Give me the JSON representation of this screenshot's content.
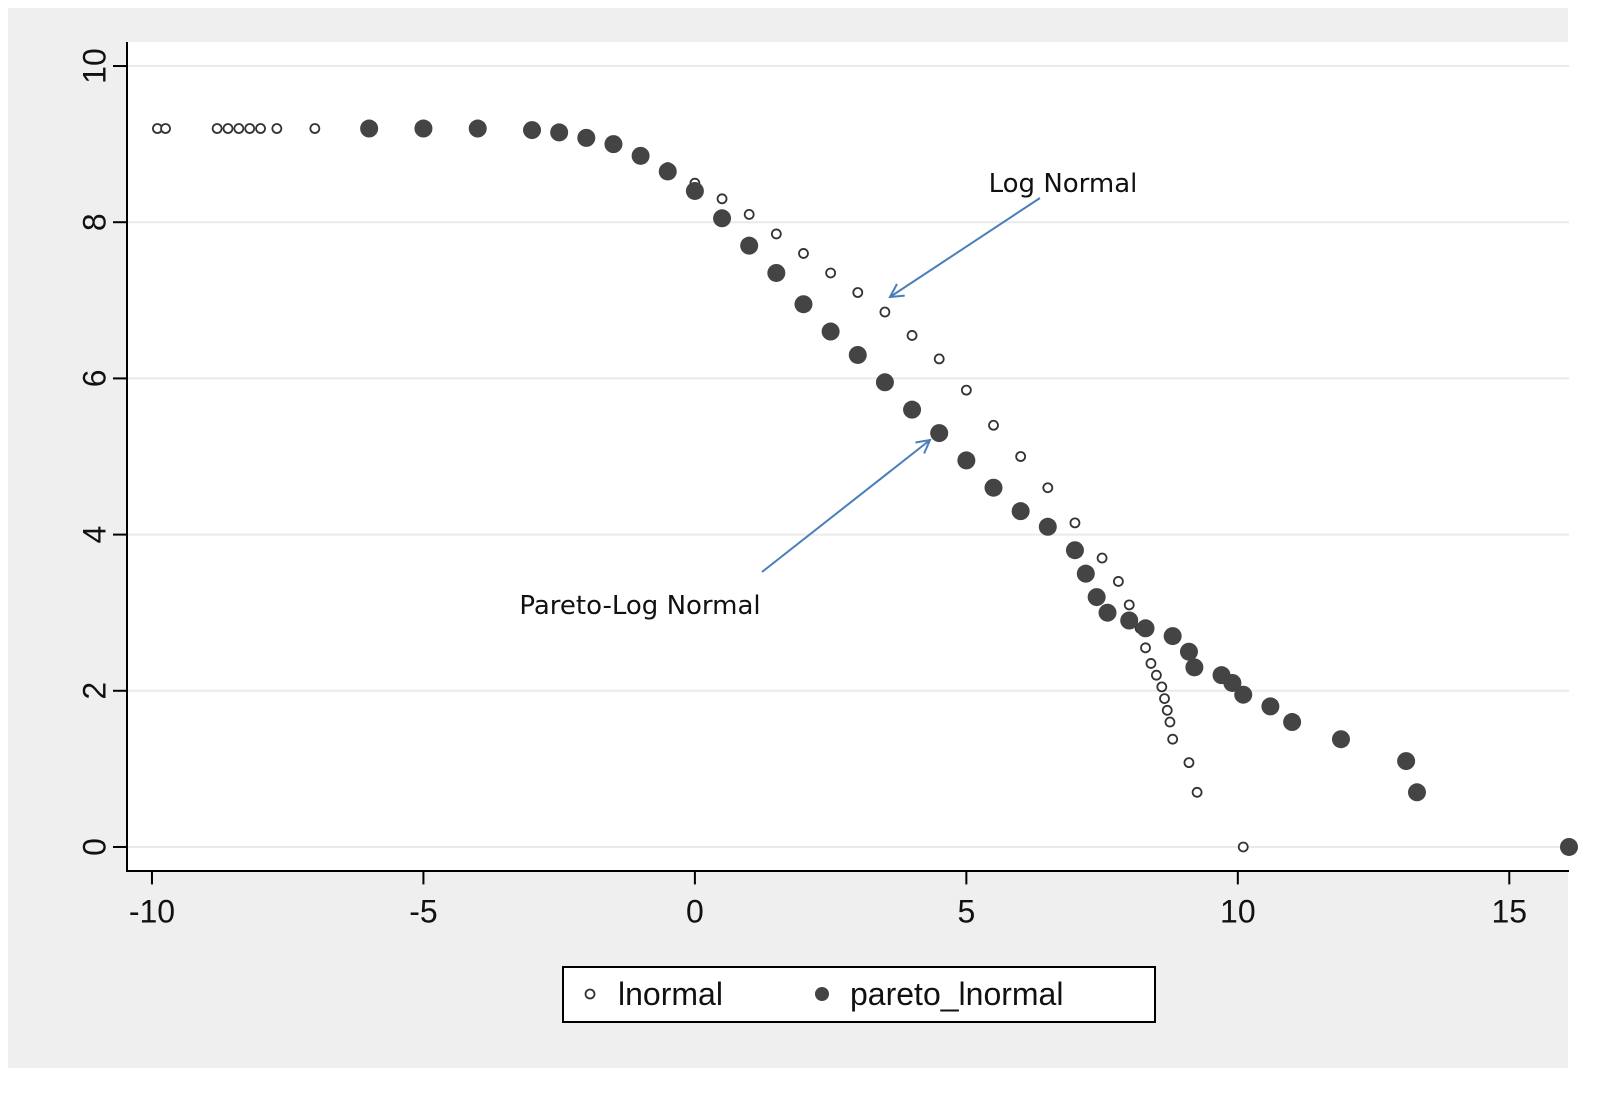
{
  "chart_data": {
    "type": "scatter",
    "annotations": [
      "Log Normal",
      "Pareto-Log Normal"
    ],
    "series": [
      {
        "name": "lnormal",
        "color": "#333333",
        "marker": "hollow",
        "x": [
          -9.9,
          -9.75,
          -8.8,
          -8.6,
          -8.4,
          -8.2,
          -8.0,
          -7.7,
          -7,
          -6,
          -5,
          -4,
          -3,
          -2,
          -1.5,
          -1,
          -0.5,
          0,
          0.5,
          1,
          1.5,
          2,
          2.5,
          3,
          3.5,
          4,
          4.5,
          5,
          5.5,
          6,
          6.5,
          7,
          7.5,
          7.8,
          8.0,
          8.2,
          8.3,
          8.4,
          8.5,
          8.6,
          8.65,
          8.7,
          8.75,
          8.8,
          9.1,
          9.25,
          10.1
        ],
        "values": [
          9.2,
          9.2,
          9.2,
          9.2,
          9.2,
          9.2,
          9.2,
          9.2,
          9.2,
          9.2,
          9.2,
          9.19,
          9.17,
          9.1,
          9.0,
          8.85,
          8.7,
          8.5,
          8.3,
          8.1,
          7.85,
          7.6,
          7.35,
          7.1,
          6.85,
          6.55,
          6.25,
          5.85,
          5.4,
          5.0,
          4.6,
          4.15,
          3.7,
          3.4,
          3.1,
          2.8,
          2.55,
          2.35,
          2.2,
          2.05,
          1.9,
          1.75,
          1.6,
          1.38,
          1.08,
          0.7,
          0
        ]
      },
      {
        "name": "pareto_lnormal",
        "color": "#444444",
        "marker": "filled",
        "x": [
          -6,
          -5,
          -4,
          -3,
          -2.5,
          -2,
          -1.5,
          -1,
          -0.5,
          0,
          0.5,
          1,
          1.5,
          2,
          2.5,
          3,
          3.5,
          4,
          4.5,
          5,
          5.5,
          6,
          6.5,
          7,
          7.2,
          7.4,
          7.6,
          8,
          8.3,
          8.8,
          9.1,
          9.2,
          9.7,
          9.9,
          10.1,
          10.6,
          11,
          11.9,
          13.1,
          13.3,
          16.1
        ],
        "values": [
          9.2,
          9.2,
          9.2,
          9.18,
          9.15,
          9.08,
          9.0,
          8.85,
          8.65,
          8.4,
          8.05,
          7.7,
          7.35,
          6.95,
          6.6,
          6.3,
          5.95,
          5.6,
          5.3,
          4.95,
          4.6,
          4.3,
          4.1,
          3.8,
          3.5,
          3.2,
          3.0,
          2.9,
          2.8,
          2.7,
          2.5,
          2.3,
          2.2,
          2.1,
          1.95,
          1.8,
          1.6,
          1.38,
          1.1,
          0.7,
          0
        ]
      }
    ],
    "xlim": [
      -10.46,
      16.1
    ],
    "xticks": [
      -10,
      -5,
      0,
      5,
      10,
      15
    ],
    "ylim": [
      -0.3,
      10.3
    ],
    "yticks": [
      0,
      2,
      4,
      6,
      8,
      10
    ],
    "grid": true,
    "legend": "bottom"
  }
}
